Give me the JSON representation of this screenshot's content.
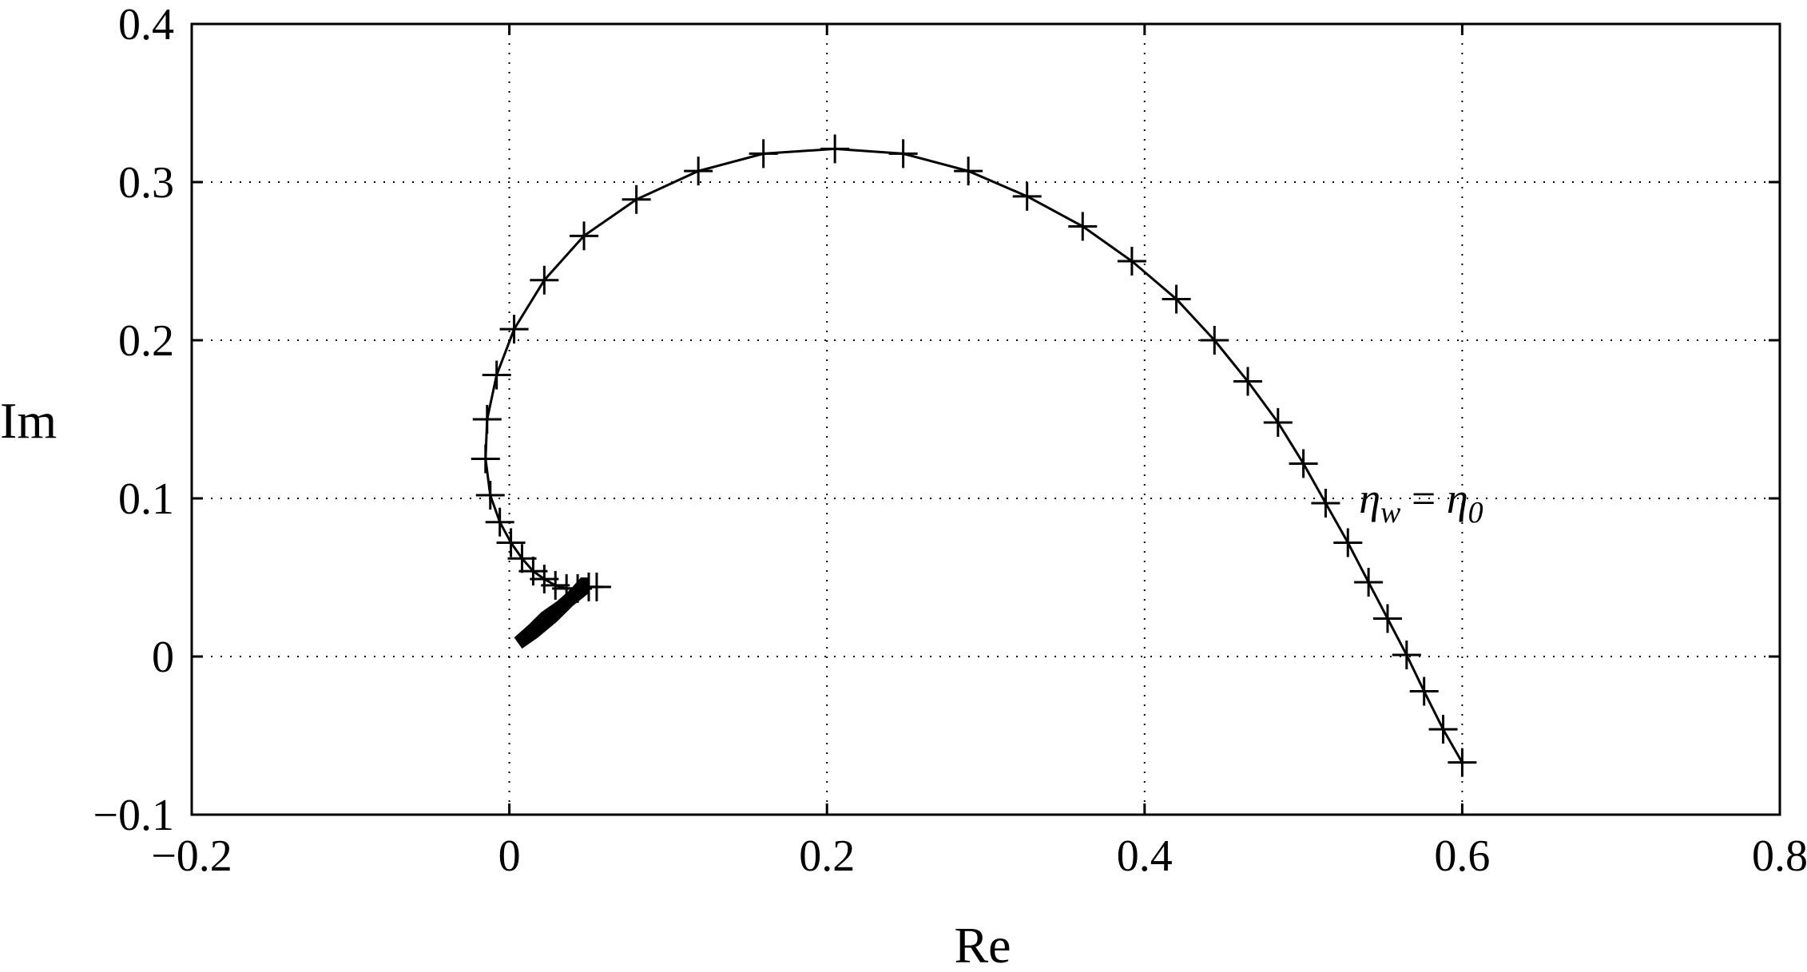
{
  "chart_data": {
    "type": "line",
    "title": "",
    "xlabel": "Re",
    "ylabel": "Im",
    "xlim": [
      -0.2,
      0.8
    ],
    "ylim": [
      -0.1,
      0.4
    ],
    "xticks": [
      -0.2,
      0,
      0.2,
      0.4,
      0.6,
      0.8
    ],
    "yticks": [
      -0.1,
      0,
      0.1,
      0.2,
      0.3,
      0.4
    ],
    "xtick_labels": [
      "−0.2",
      "0",
      "0.2",
      "0.4",
      "0.6",
      "0.8"
    ],
    "ytick_labels": [
      "−0.1",
      "0",
      "0.1",
      "0.2",
      "0.3",
      "0.4"
    ],
    "grid": true,
    "marker": "+",
    "annotation": {
      "eta": "η",
      "sub_w": "w",
      "equals": " = ",
      "sub_0": "0",
      "x": 0.53,
      "y": 0.1
    },
    "series": [
      {
        "points": [
          [
            0.6,
            -0.067
          ],
          [
            0.588,
            -0.046
          ],
          [
            0.576,
            -0.022
          ],
          [
            0.565,
            0.001
          ],
          [
            0.553,
            0.024
          ],
          [
            0.541,
            0.047
          ],
          [
            0.528,
            0.072
          ],
          [
            0.514,
            0.097
          ],
          [
            0.5,
            0.122
          ],
          [
            0.484,
            0.148
          ],
          [
            0.465,
            0.174
          ],
          [
            0.444,
            0.2
          ],
          [
            0.42,
            0.226
          ],
          [
            0.392,
            0.25
          ],
          [
            0.361,
            0.272
          ],
          [
            0.326,
            0.291
          ],
          [
            0.289,
            0.307
          ],
          [
            0.248,
            0.318
          ],
          [
            0.205,
            0.321
          ],
          [
            0.16,
            0.318
          ],
          [
            0.119,
            0.307
          ],
          [
            0.08,
            0.289
          ],
          [
            0.047,
            0.266
          ],
          [
            0.022,
            0.238
          ],
          [
            0.003,
            0.207
          ],
          [
            -0.008,
            0.178
          ],
          [
            -0.014,
            0.15
          ],
          [
            -0.015,
            0.125
          ],
          [
            -0.012,
            0.102
          ],
          [
            -0.006,
            0.085
          ],
          [
            0.001,
            0.072
          ],
          [
            0.008,
            0.062
          ],
          [
            0.015,
            0.054
          ],
          [
            0.022,
            0.049
          ],
          [
            0.029,
            0.045
          ],
          [
            0.036,
            0.043
          ],
          [
            0.043,
            0.043
          ],
          [
            0.05,
            0.044
          ],
          [
            0.055,
            0.044
          ]
        ]
      }
    ],
    "cluster": [
      [
        0.008,
        0.005
      ],
      [
        0.003,
        0.012
      ],
      [
        0.012,
        0.02
      ],
      [
        0.02,
        0.028
      ],
      [
        0.03,
        0.035
      ],
      [
        0.038,
        0.042
      ],
      [
        0.045,
        0.05
      ],
      [
        0.05,
        0.05
      ],
      [
        0.05,
        0.04
      ],
      [
        0.04,
        0.032
      ],
      [
        0.03,
        0.022
      ],
      [
        0.018,
        0.012
      ]
    ]
  }
}
